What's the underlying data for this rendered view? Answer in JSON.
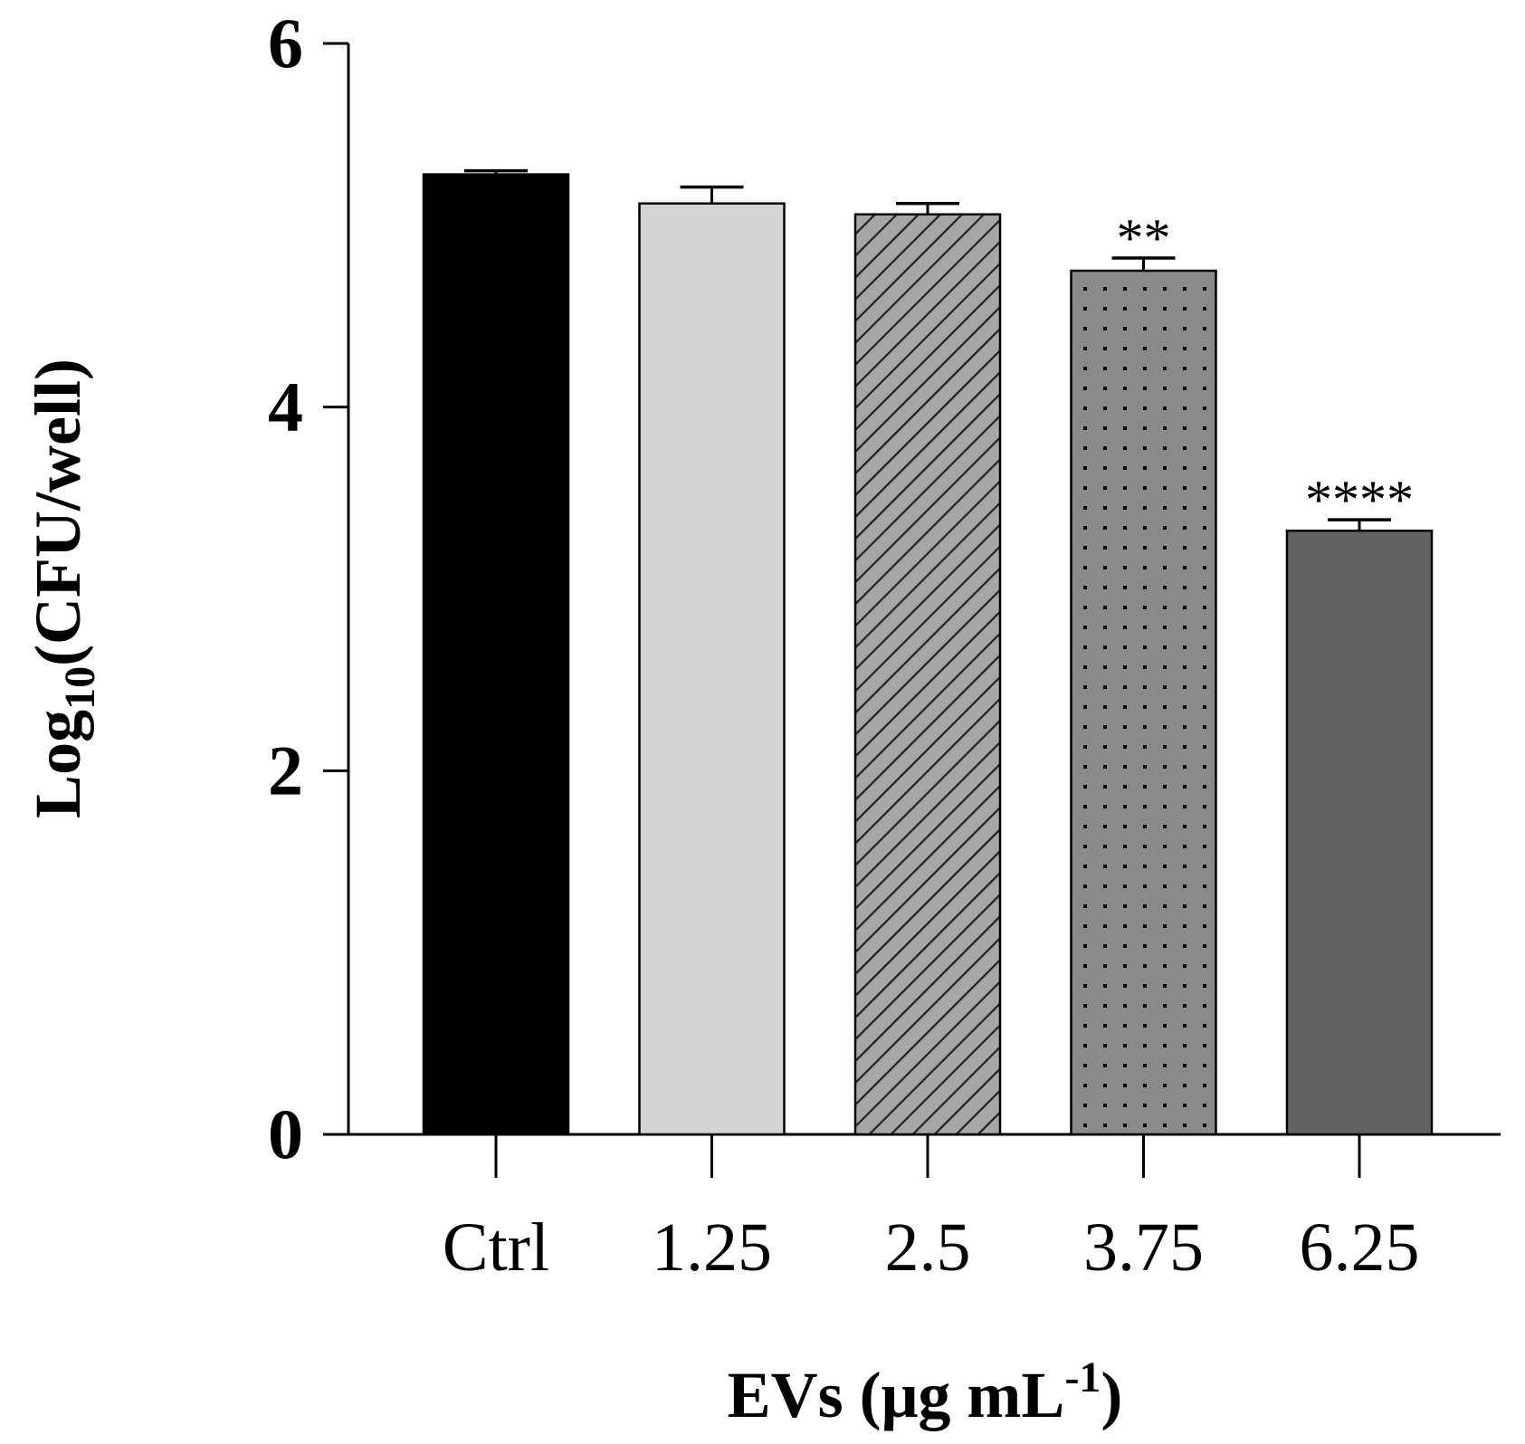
{
  "chart_data": {
    "type": "bar",
    "categories": [
      "Ctrl",
      "1.25",
      "2.5",
      "3.75",
      "6.25"
    ],
    "values": [
      5.28,
      5.12,
      5.06,
      4.75,
      3.32
    ],
    "errors": [
      0.02,
      0.09,
      0.06,
      0.07,
      0.06
    ],
    "significance": [
      "",
      "",
      "",
      "**",
      "****"
    ],
    "fills": [
      {
        "color": "#000000",
        "pattern": "solid"
      },
      {
        "color": "#d4d4d4",
        "pattern": "solid"
      },
      {
        "color": "#a6a6a6",
        "pattern": "diagonal"
      },
      {
        "color": "#8a8a8a",
        "pattern": "dots"
      },
      {
        "color": "#636363",
        "pattern": "solid"
      }
    ],
    "ylabel": {
      "main": "Log",
      "sub": "10",
      "rest": "(CFU/well)"
    },
    "xlabel": {
      "main": "EVs (μg mL",
      "sup": "-1",
      "rest": ")"
    },
    "ylim": [
      0,
      6
    ],
    "yticks": [
      "0",
      "2",
      "4",
      "6"
    ],
    "grid": false
  }
}
